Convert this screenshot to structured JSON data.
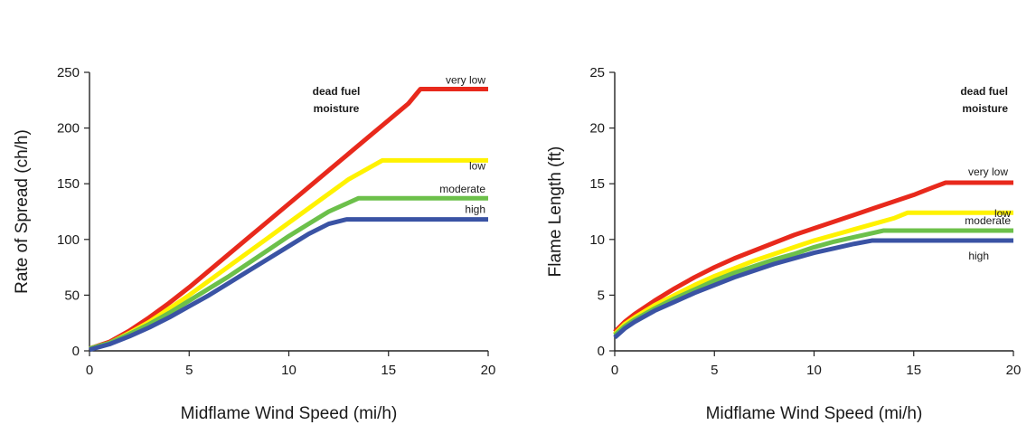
{
  "chart_data": [
    {
      "type": "line",
      "xlabel": "Midflame Wind Speed (mi/h)",
      "ylabel": "Rate of Spread (ch/h)",
      "xlim": [
        0,
        20
      ],
      "ylim": [
        0,
        250
      ],
      "xticks": [
        "0",
        "5",
        "10",
        "15",
        "20"
      ],
      "yticks": [
        "0",
        "50",
        "100",
        "150",
        "200",
        "250"
      ],
      "grid": false,
      "annotation": [
        "dead fuel",
        "moisture"
      ],
      "series": [
        {
          "name": "very low",
          "color": "#e8291c",
          "x": [
            0,
            1,
            2,
            3,
            4,
            5,
            6,
            7,
            8,
            9,
            10,
            11,
            12,
            13,
            14,
            15,
            16,
            16.6,
            20
          ],
          "y": [
            2,
            8,
            18,
            30,
            43,
            57,
            72,
            87,
            102,
            117,
            132,
            147,
            162,
            177,
            192,
            207,
            222,
            235,
            235
          ]
        },
        {
          "name": "low",
          "color": "#fff200",
          "x": [
            0,
            1,
            2,
            3,
            4,
            5,
            6,
            7,
            8,
            9,
            10,
            11,
            12,
            13,
            14,
            14.7,
            20
          ],
          "y": [
            2,
            7,
            16,
            26,
            38,
            50,
            63,
            76,
            89,
            102,
            115,
            128,
            141,
            154,
            164,
            171,
            171
          ]
        },
        {
          "name": "moderate",
          "color": "#6cc04a",
          "x": [
            0,
            1,
            2,
            3,
            4,
            5,
            6,
            7,
            8,
            9,
            10,
            11,
            12,
            13,
            13.5,
            20
          ],
          "y": [
            2,
            7,
            15,
            24,
            34,
            45,
            56,
            67,
            79,
            91,
            103,
            114,
            125,
            133,
            137,
            137
          ]
        },
        {
          "name": "high",
          "color": "#3a53a4",
          "x": [
            0,
            1,
            2,
            3,
            4,
            5,
            6,
            7,
            8,
            9,
            10,
            11,
            12,
            12.9,
            20
          ],
          "y": [
            1,
            6,
            13,
            21,
            30,
            40,
            50,
            61,
            72,
            83,
            94,
            105,
            114,
            118,
            118
          ]
        }
      ]
    },
    {
      "type": "line",
      "xlabel": "Midflame Wind Speed (mi/h)",
      "ylabel": "Flame Length (ft)",
      "xlim": [
        0,
        20
      ],
      "ylim": [
        0,
        25
      ],
      "xticks": [
        "0",
        "5",
        "10",
        "15",
        "20"
      ],
      "yticks": [
        "0",
        "5",
        "10",
        "15",
        "20",
        "25"
      ],
      "grid": false,
      "annotation": [
        "dead fuel",
        "moisture"
      ],
      "series": [
        {
          "name": "very low",
          "color": "#e8291c",
          "x": [
            0,
            0.5,
            1,
            2,
            3,
            4,
            5,
            6,
            7,
            8,
            9,
            10,
            11,
            12,
            13,
            14,
            15,
            16,
            16.6,
            20
          ],
          "y": [
            1.7,
            2.6,
            3.3,
            4.5,
            5.6,
            6.6,
            7.5,
            8.3,
            9.0,
            9.7,
            10.4,
            11.0,
            11.6,
            12.2,
            12.8,
            13.4,
            14.0,
            14.7,
            15.1,
            15.1
          ]
        },
        {
          "name": "low",
          "color": "#fff200",
          "x": [
            0,
            0.5,
            1,
            2,
            3,
            4,
            5,
            6,
            7,
            8,
            9,
            10,
            11,
            12,
            13,
            14,
            14.7,
            20
          ],
          "y": [
            1.5,
            2.4,
            3.0,
            4.1,
            5.0,
            5.9,
            6.7,
            7.4,
            8.1,
            8.7,
            9.3,
            9.9,
            10.4,
            10.9,
            11.4,
            11.9,
            12.4,
            12.4
          ]
        },
        {
          "name": "moderate",
          "color": "#6cc04a",
          "x": [
            0,
            0.5,
            1,
            2,
            3,
            4,
            5,
            6,
            7,
            8,
            9,
            10,
            11,
            12,
            13,
            13.5,
            20
          ],
          "y": [
            1.4,
            2.2,
            2.8,
            3.8,
            4.7,
            5.5,
            6.3,
            7.0,
            7.6,
            8.2,
            8.7,
            9.3,
            9.8,
            10.2,
            10.6,
            10.8,
            10.8
          ]
        },
        {
          "name": "high",
          "color": "#3a53a4",
          "x": [
            0,
            0.5,
            1,
            2,
            3,
            4,
            5,
            6,
            7,
            8,
            9,
            10,
            11,
            12,
            12.9,
            20
          ],
          "y": [
            1.2,
            2.0,
            2.6,
            3.6,
            4.4,
            5.2,
            5.9,
            6.6,
            7.2,
            7.8,
            8.3,
            8.8,
            9.2,
            9.6,
            9.9,
            9.9
          ]
        }
      ]
    }
  ]
}
